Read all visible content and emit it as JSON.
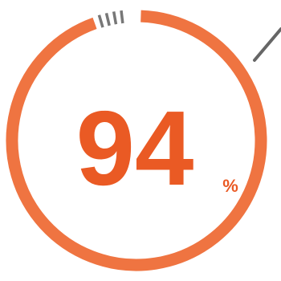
{
  "gauge": {
    "value_text": "94",
    "unit_text": "%",
    "progress_fraction": 0.94,
    "colors": {
      "ring": "#ef7441",
      "text": "#ea5a24",
      "ticks": "#777777",
      "leader_line": "#666666",
      "background": "#ffffff"
    }
  }
}
